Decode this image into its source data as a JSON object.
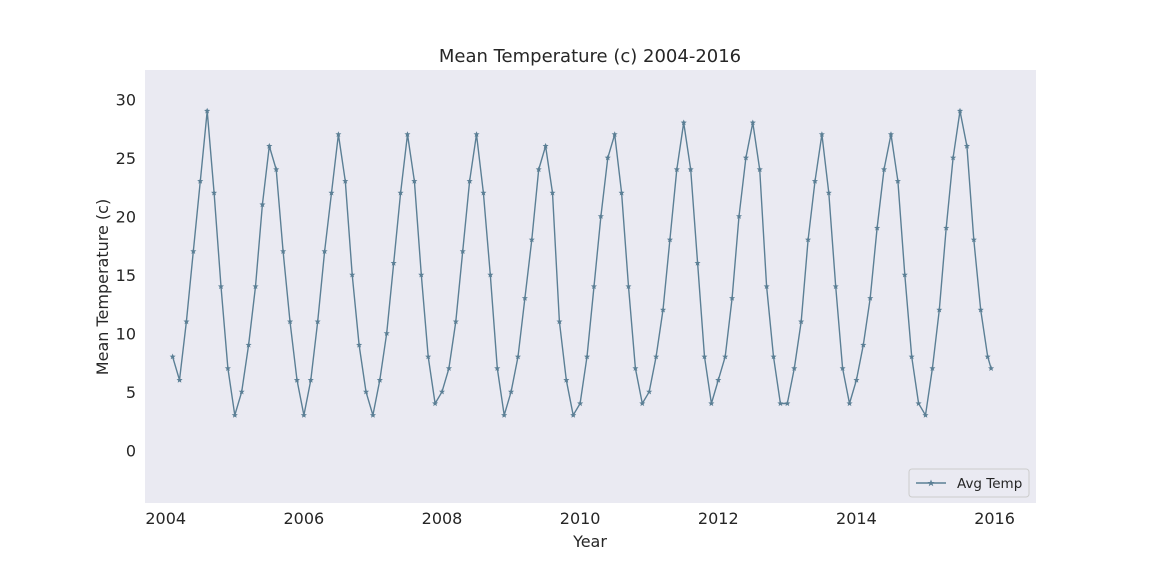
{
  "chart_data": {
    "type": "line",
    "title": "Mean Temperature (c) 2004-2016",
    "xlabel": "Year",
    "ylabel": "Mean Temperature (c)",
    "xlim": [
      2003.7,
      2016.6
    ],
    "ylim": [
      -4.5,
      32.5
    ],
    "xticks": [
      2004,
      2006,
      2008,
      2010,
      2012,
      2014,
      2016
    ],
    "yticks": [
      0,
      5,
      10,
      15,
      20,
      25,
      30
    ],
    "grid": false,
    "legend_position": "bottom-right",
    "marker": "star",
    "series": [
      {
        "name": "Avg Temp",
        "color": "#5b7f95",
        "x": [
          2004.1,
          2004.2,
          2004.3,
          2004.4,
          2004.5,
          2004.6,
          2004.7,
          2004.8,
          2004.9,
          2005.0,
          2005.1,
          2005.2,
          2005.3,
          2005.4,
          2005.5,
          2005.6,
          2005.7,
          2005.8,
          2005.9,
          2006.0,
          2006.1,
          2006.2,
          2006.3,
          2006.4,
          2006.5,
          2006.6,
          2006.7,
          2006.8,
          2006.9,
          2007.0,
          2007.1,
          2007.2,
          2007.3,
          2007.4,
          2007.5,
          2007.6,
          2007.7,
          2007.8,
          2007.9,
          2008.0,
          2008.1,
          2008.2,
          2008.3,
          2008.4,
          2008.5,
          2008.6,
          2008.7,
          2008.8,
          2008.9,
          2009.0,
          2009.1,
          2009.2,
          2009.3,
          2009.4,
          2009.5,
          2009.6,
          2009.7,
          2009.8,
          2009.9,
          2010.0,
          2010.1,
          2010.2,
          2010.3,
          2010.4,
          2010.5,
          2010.6,
          2010.7,
          2010.8,
          2010.9,
          2011.0,
          2011.1,
          2011.2,
          2011.3,
          2011.4,
          2011.5,
          2011.6,
          2011.7,
          2011.8,
          2011.9,
          2012.0,
          2012.1,
          2012.2,
          2012.3,
          2012.4,
          2012.5,
          2012.6,
          2012.7,
          2012.8,
          2012.9,
          2013.0,
          2013.1,
          2013.2,
          2013.3,
          2013.4,
          2013.5,
          2013.6,
          2013.7,
          2013.8,
          2013.9,
          2014.0,
          2014.1,
          2014.2,
          2014.3,
          2014.4,
          2014.5,
          2014.6,
          2014.7,
          2014.8,
          2014.9,
          2015.0,
          2015.1,
          2015.2,
          2015.3,
          2015.4,
          2015.5,
          2015.6,
          2015.7,
          2015.8,
          2015.9,
          2015.95
        ],
        "values": [
          8,
          6,
          11,
          17,
          23,
          29,
          22,
          14,
          7,
          3,
          5,
          9,
          14,
          21,
          26,
          24,
          17,
          11,
          6,
          3,
          6,
          11,
          17,
          22,
          27,
          23,
          15,
          9,
          5,
          3,
          6,
          10,
          16,
          22,
          27,
          23,
          15,
          8,
          4,
          5,
          7,
          11,
          17,
          23,
          27,
          22,
          15,
          7,
          3,
          5,
          8,
          13,
          18,
          24,
          26,
          22,
          11,
          6,
          3,
          4,
          8,
          14,
          20,
          25,
          27,
          22,
          14,
          7,
          4,
          5,
          8,
          12,
          18,
          24,
          28,
          24,
          16,
          8,
          4,
          6,
          8,
          13,
          20,
          25,
          28,
          24,
          14,
          8,
          4,
          4,
          7,
          11,
          18,
          23,
          27,
          22,
          14,
          7,
          4,
          6,
          9,
          13,
          19,
          24,
          27,
          23,
          15,
          8,
          4,
          3,
          7,
          12,
          19,
          25,
          29,
          26,
          18,
          12,
          8,
          7
        ]
      }
    ]
  }
}
